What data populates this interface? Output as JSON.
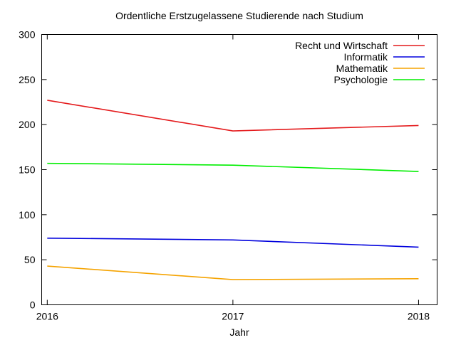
{
  "chart_data": {
    "type": "line",
    "title": "Ordentliche Erstzugelassene Studierende nach Studium",
    "xlabel": "Jahr",
    "ylabel": "",
    "x": [
      2016,
      2017,
      2018
    ],
    "x_tick_labels": [
      "2016",
      "2017",
      "2018"
    ],
    "xlim": [
      2015.97,
      2018.1
    ],
    "ylim": [
      0,
      300
    ],
    "y_ticks": [
      0,
      50,
      100,
      150,
      200,
      250,
      300
    ],
    "grid": false,
    "legend_position": "top-right",
    "series": [
      {
        "name": "Recht und Wirtschaft",
        "color": "#e41a1c",
        "values": [
          227,
          193,
          199
        ]
      },
      {
        "name": "Informatik",
        "color": "#0000dd",
        "values": [
          74,
          72,
          64
        ]
      },
      {
        "name": "Mathematik",
        "color": "#f5a300",
        "values": [
          43,
          28,
          29
        ]
      },
      {
        "name": "Psychologie",
        "color": "#00ee00",
        "values": [
          157,
          155,
          148
        ]
      }
    ]
  }
}
